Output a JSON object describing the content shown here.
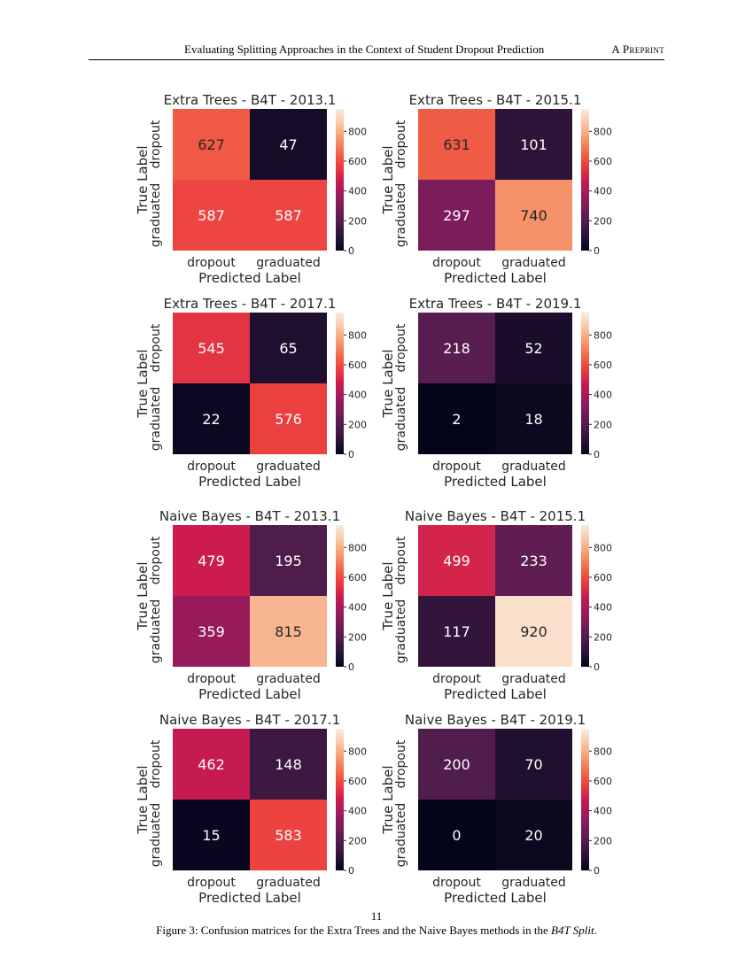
{
  "header": {
    "paper_title": "Evaluating Splitting Approaches in the Context of Student Dropout Prediction",
    "tag": "A Preprint"
  },
  "page_number": "11",
  "caption": {
    "prefix": "Figure 3: Confusion matrices for the Extra Trees and the Naive Bayes methods in the ",
    "emph": "B4T Split",
    "suffix": "."
  },
  "colormap": {
    "name": "rocket",
    "stops": [
      "#03051a",
      "#2b1337",
      "#4c1d4b",
      "#761c5b",
      "#a11a5b",
      "#cb1b4f",
      "#ec3d3f",
      "#f26c49",
      "#f69c73",
      "#f9c8a6",
      "#faebdd"
    ]
  },
  "chart_data": [
    {
      "type": "heatmap",
      "title": "Extra Trees - B4T - 2013.1",
      "xlabel": "Predicted Label",
      "ylabel": "True Label",
      "x_tick_labels": [
        "dropout",
        "graduated"
      ],
      "y_tick_labels": [
        "dropout",
        "graduated"
      ],
      "values": [
        [
          627,
          47
        ],
        [
          587,
          587
        ]
      ],
      "colorbar_ticks": [
        0,
        200,
        400,
        600,
        800
      ],
      "colorbar_range": [
        0,
        950
      ]
    },
    {
      "type": "heatmap",
      "title": "Extra Trees - B4T - 2015.1",
      "xlabel": "Predicted Label",
      "ylabel": "True Label",
      "x_tick_labels": [
        "dropout",
        "graduated"
      ],
      "y_tick_labels": [
        "dropout",
        "graduated"
      ],
      "values": [
        [
          631,
          101
        ],
        [
          297,
          740
        ]
      ],
      "colorbar_ticks": [
        0,
        200,
        400,
        600,
        800
      ],
      "colorbar_range": [
        0,
        950
      ]
    },
    {
      "type": "heatmap",
      "title": "Extra Trees - B4T - 2017.1",
      "xlabel": "Predicted Label",
      "ylabel": "True Label",
      "x_tick_labels": [
        "dropout",
        "graduated"
      ],
      "y_tick_labels": [
        "dropout",
        "graduated"
      ],
      "values": [
        [
          545,
          65
        ],
        [
          22,
          576
        ]
      ],
      "colorbar_ticks": [
        0,
        200,
        400,
        600,
        800
      ],
      "colorbar_range": [
        0,
        950
      ]
    },
    {
      "type": "heatmap",
      "title": "Extra Trees - B4T - 2019.1",
      "xlabel": "Predicted Label",
      "ylabel": "True Label",
      "x_tick_labels": [
        "dropout",
        "graduated"
      ],
      "y_tick_labels": [
        "dropout",
        "graduated"
      ],
      "values": [
        [
          218,
          52
        ],
        [
          2,
          18
        ]
      ],
      "colorbar_ticks": [
        0,
        200,
        400,
        600,
        800
      ],
      "colorbar_range": [
        0,
        950
      ]
    },
    {
      "type": "heatmap",
      "title": "Naive Bayes - B4T - 2013.1",
      "xlabel": "Predicted Label",
      "ylabel": "True Label",
      "x_tick_labels": [
        "dropout",
        "graduated"
      ],
      "y_tick_labels": [
        "dropout",
        "graduated"
      ],
      "values": [
        [
          479,
          195
        ],
        [
          359,
          815
        ]
      ],
      "colorbar_ticks": [
        0,
        200,
        400,
        600,
        800
      ],
      "colorbar_range": [
        0,
        950
      ]
    },
    {
      "type": "heatmap",
      "title": "Naive Bayes - B4T - 2015.1",
      "xlabel": "Predicted Label",
      "ylabel": "True Label",
      "x_tick_labels": [
        "dropout",
        "graduated"
      ],
      "y_tick_labels": [
        "dropout",
        "graduated"
      ],
      "values": [
        [
          499,
          233
        ],
        [
          117,
          920
        ]
      ],
      "colorbar_ticks": [
        0,
        200,
        400,
        600,
        800
      ],
      "colorbar_range": [
        0,
        950
      ]
    },
    {
      "type": "heatmap",
      "title": "Naive Bayes - B4T - 2017.1",
      "xlabel": "Predicted Label",
      "ylabel": "True Label",
      "x_tick_labels": [
        "dropout",
        "graduated"
      ],
      "y_tick_labels": [
        "dropout",
        "graduated"
      ],
      "values": [
        [
          462,
          148
        ],
        [
          15,
          583
        ]
      ],
      "colorbar_ticks": [
        0,
        200,
        400,
        600,
        800
      ],
      "colorbar_range": [
        0,
        950
      ]
    },
    {
      "type": "heatmap",
      "title": "Naive Bayes - B4T - 2019.1",
      "xlabel": "Predicted Label",
      "ylabel": "True Label",
      "x_tick_labels": [
        "dropout",
        "graduated"
      ],
      "y_tick_labels": [
        "dropout",
        "graduated"
      ],
      "values": [
        [
          200,
          70
        ],
        [
          0,
          20
        ]
      ],
      "colorbar_ticks": [
        0,
        200,
        400,
        600,
        800
      ],
      "colorbar_range": [
        0,
        950
      ]
    }
  ]
}
